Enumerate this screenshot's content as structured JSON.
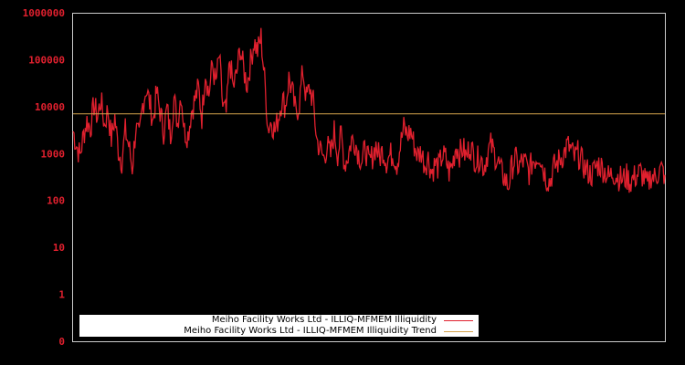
{
  "chart_data": {
    "type": "line",
    "title": "",
    "xlabel": "",
    "ylabel": "",
    "yscale": "log",
    "y_tick_labels": [
      "0",
      "1",
      "10",
      "100",
      "1000",
      "10000",
      "100000",
      "1000000"
    ],
    "ylim": [
      0,
      1000000
    ],
    "grid": false,
    "legend_position": "bottom-left inside",
    "series": [
      {
        "name": "Meiho Facility Works Ltd - ILLIQ-MFMEM Illiquidity",
        "color": "#e0202e",
        "values": [
          3000,
          1500,
          900,
          2500,
          5000,
          3500,
          11000,
          6000,
          14000,
          4000,
          9000,
          2000,
          6000,
          1200,
          700,
          3000,
          1500,
          500,
          3500,
          2000,
          11000,
          25000,
          12000,
          5000,
          20000,
          8000,
          3000,
          9000,
          2500,
          15000,
          4500,
          20000,
          3000,
          2500,
          8000,
          14000,
          25000,
          6000,
          60000,
          18000,
          80000,
          30000,
          120000,
          10000,
          7000,
          100000,
          25000,
          50000,
          180000,
          60000,
          30000,
          90000,
          250000,
          150000,
          300000,
          40000,
          3500,
          5000,
          3000,
          6000,
          15000,
          10000,
          40000,
          20000,
          7000,
          12000,
          60000,
          15000,
          25000,
          12000,
          2000,
          1200,
          800,
          1500,
          900,
          3000,
          1000,
          2500,
          600,
          900,
          2000,
          1800,
          1000,
          700,
          1300,
          600,
          900,
          1500,
          800,
          1200,
          700,
          900,
          1000,
          600,
          1500,
          3500,
          2500,
          3000,
          1500,
          900,
          1100,
          600,
          800,
          400,
          600,
          500,
          900,
          800,
          400,
          600,
          1500,
          1000,
          1300,
          800,
          1600,
          900,
          700,
          900,
          500,
          1000,
          1500,
          1000,
          700,
          400,
          300,
          200,
          500,
          800,
          500,
          700,
          600,
          400,
          700,
          800,
          1000,
          500,
          300,
          250,
          500,
          600,
          800,
          1000,
          1500,
          1200,
          800,
          1000,
          700,
          500,
          400,
          350,
          500,
          600,
          500,
          400,
          300,
          400,
          350,
          300,
          280,
          320,
          250,
          300,
          350,
          400,
          300,
          200,
          350,
          300,
          400,
          450,
          350
        ]
      },
      {
        "name": "Meiho Facility Works Ltd - ILLIQ-MFMEM Illiquidity Trend",
        "color": "#d4a24c",
        "values": [
          7000,
          7000
        ]
      }
    ]
  },
  "legend": {
    "items": [
      {
        "label": "Meiho Facility Works Ltd - ILLIQ-MFMEM Illiquidity",
        "color": "#e0202e"
      },
      {
        "label": "Meiho Facility Works Ltd - ILLIQ-MFMEM Illiquidity Trend",
        "color": "#d4a24c"
      }
    ]
  },
  "colors": {
    "background": "#000000",
    "axis": "#cccccc",
    "tick_text": "#e0202e"
  }
}
